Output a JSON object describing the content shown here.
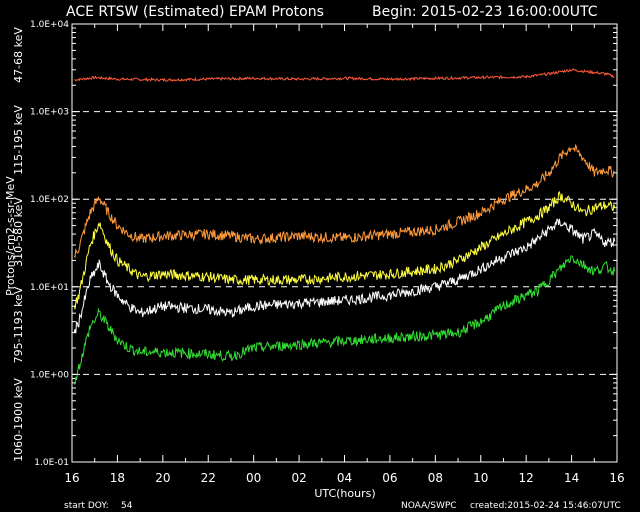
{
  "chart_data": {
    "type": "line",
    "title": "ACE RTSW (Estimated) EPAM Protons",
    "begin_label": "Begin: 2015-02-23 16:00:00UTC",
    "xlabel": "UTC(hours)",
    "ylabel": "Protons/cm2-s-sr-MeV",
    "y_scale": "log",
    "ylim": [
      0.1,
      10000
    ],
    "xlim": [
      16,
      40
    ],
    "x_tick_labels": [
      "16",
      "18",
      "20",
      "22",
      "00",
      "02",
      "04",
      "06",
      "08",
      "10",
      "12",
      "14",
      "16"
    ],
    "y_tick_labels": [
      "1.0E-01",
      "1.0E+00",
      "1.0E+01",
      "1.0E+02",
      "1.0E+03",
      "1.0E+04"
    ],
    "dashed_reference_levels": [
      1,
      10,
      100,
      1000
    ],
    "grid": false,
    "footer": {
      "start_doy_label": "start DOY:",
      "start_doy_value": "54",
      "source": "NOAA/SWPC",
      "created": "created:2015-02-24 15:46:07UTC"
    },
    "series": [
      {
        "name": "47-68 keV",
        "color": "#ff5a3c",
        "x": [
          16.1,
          17,
          18,
          20,
          22,
          24,
          26,
          28,
          30,
          32,
          34,
          36,
          37,
          38,
          39.5,
          39.9
        ],
        "y": [
          2300,
          2450,
          2350,
          2300,
          2350,
          2400,
          2350,
          2400,
          2350,
          2400,
          2450,
          2500,
          2700,
          3000,
          2700,
          2500
        ]
      },
      {
        "name": "115-195 keV",
        "color": "#ff9a3c",
        "x": [
          16.1,
          16.3,
          16.8,
          17.2,
          17.6,
          18,
          18.5,
          19,
          20,
          22,
          23,
          24,
          26,
          28,
          30,
          32,
          33,
          34,
          35,
          36,
          36.5,
          37,
          37.5,
          38,
          38.5,
          39,
          39.5,
          39.9
        ],
        "y": [
          22,
          28,
          70,
          105,
          70,
          50,
          40,
          35,
          38,
          40,
          38,
          35,
          38,
          36,
          40,
          45,
          55,
          70,
          100,
          130,
          150,
          200,
          300,
          400,
          300,
          200,
          220,
          200
        ]
      },
      {
        "name": "310-580 keV",
        "color": "#ffff40",
        "x": [
          16.1,
          16.3,
          16.8,
          17.2,
          17.6,
          18,
          18.5,
          19,
          20,
          22,
          23,
          24,
          26,
          28,
          30,
          32,
          33,
          34,
          35,
          36,
          36.5,
          37,
          37.5,
          38,
          38.5,
          39,
          39.5,
          39.9
        ],
        "y": [
          6,
          8,
          30,
          55,
          30,
          20,
          16,
          13,
          14,
          13,
          12,
          12,
          12,
          13,
          14,
          16,
          20,
          28,
          40,
          55,
          65,
          80,
          110,
          90,
          70,
          80,
          85,
          80
        ]
      },
      {
        "name": "795-1193 keV",
        "color": "#ffffff",
        "x": [
          16.1,
          16.3,
          16.8,
          17.2,
          17.6,
          18,
          18.5,
          19,
          20,
          22,
          23,
          24,
          26,
          28,
          30,
          32,
          33,
          34,
          35,
          36,
          36.5,
          37,
          37.5,
          38,
          38.5,
          39,
          39.5,
          39.9
        ],
        "y": [
          3,
          4,
          12,
          18,
          11,
          8,
          6,
          5,
          6,
          5.5,
          5,
          6,
          6.5,
          7,
          8,
          10,
          12,
          16,
          22,
          28,
          35,
          45,
          55,
          45,
          35,
          40,
          32,
          33
        ]
      },
      {
        "name": "1060-1900 keV",
        "color": "#33dd33",
        "x": [
          16.1,
          16.3,
          16.8,
          17.2,
          17.6,
          18,
          18.5,
          19,
          20,
          22,
          23,
          24,
          26,
          28,
          30,
          32,
          33,
          34,
          35,
          36,
          36.5,
          37,
          37.5,
          38,
          38.5,
          39,
          39.5,
          39.9
        ],
        "y": [
          0.8,
          1.2,
          3.5,
          5,
          3.5,
          2.5,
          2,
          1.8,
          1.8,
          1.7,
          1.6,
          2,
          2.2,
          2.4,
          2.6,
          2.8,
          3,
          4,
          6,
          8,
          9,
          12,
          16,
          22,
          18,
          15,
          17,
          15
        ]
      }
    ]
  }
}
